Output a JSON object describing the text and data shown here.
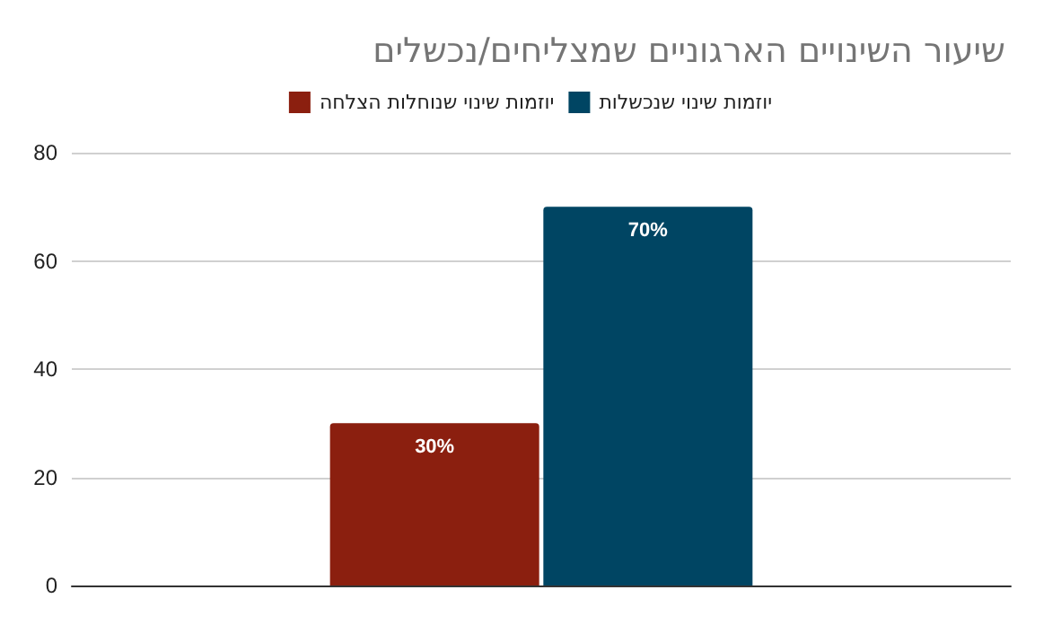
{
  "chart_data": {
    "type": "bar",
    "title": "שיעור השינויים הארגוניים שמצליחים/נכשלים",
    "categories": [
      null
    ],
    "series": [
      {
        "name": "יוזמות שינוי שנוחלות הצלחה",
        "color": "#8b1f0f",
        "values": [
          30
        ],
        "value_labels": [
          "30%"
        ]
      },
      {
        "name": "יוזמות שינוי שנכשלות",
        "color": "#004563",
        "values": [
          70
        ],
        "value_labels": [
          "70%"
        ]
      }
    ],
    "ylim": [
      0,
      80
    ],
    "yticks": [
      0,
      20,
      40,
      60,
      80
    ],
    "grid": "y",
    "legend": "top"
  }
}
